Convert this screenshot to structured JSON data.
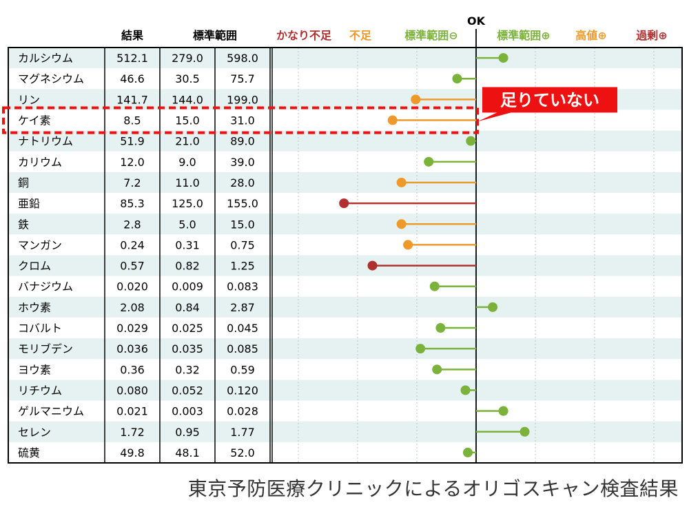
{
  "chart_data": {
    "type": "table",
    "ok_label": "OK",
    "columns": {
      "name": "",
      "result": "結果",
      "range": "標準範囲"
    },
    "scale_labels": [
      {
        "text": "かなり不足",
        "color": "#b03030"
      },
      {
        "text": "不足",
        "color": "#ee9a2a"
      },
      {
        "text": "標準範囲⊖",
        "color": "#7ab23a"
      },
      {
        "text": "標準範囲⊕",
        "color": "#7ab23a"
      },
      {
        "text": "高値⊕",
        "color": "#ee9a2a"
      },
      {
        "text": "過剰⊕",
        "color": "#b03030"
      }
    ],
    "colors": {
      "red": "#b03030",
      "orange": "#ee9a2a",
      "green": "#7ab23a",
      "highlight": "#ee1111",
      "stripe": "#e6f2f2"
    },
    "callout": "足りていない",
    "highlighted_row": "ケイ素",
    "rows": [
      {
        "name": "カルシウム",
        "result": "512.1",
        "low": "279.0",
        "high": "598.0",
        "level": 0.46,
        "color": "green"
      },
      {
        "name": "マグネシウム",
        "result": "46.6",
        "low": "30.5",
        "high": "75.7",
        "level": -0.32,
        "color": "green"
      },
      {
        "name": "リン",
        "result": "141.7",
        "low": "144.0",
        "high": "199.0",
        "level": -1.02,
        "color": "orange"
      },
      {
        "name": "ケイ素",
        "result": "8.5",
        "low": "15.0",
        "high": "31.0",
        "level": -1.41,
        "color": "orange"
      },
      {
        "name": "ナトリウム",
        "result": "51.9",
        "low": "21.0",
        "high": "89.0",
        "level": -0.09,
        "color": "green"
      },
      {
        "name": "カリウム",
        "result": "12.0",
        "low": "9.0",
        "high": "39.0",
        "level": -0.8,
        "color": "green"
      },
      {
        "name": "銅",
        "result": "7.2",
        "low": "11.0",
        "high": "28.0",
        "level": -1.26,
        "color": "orange"
      },
      {
        "name": "亜鉛",
        "result": "85.3",
        "low": "125.0",
        "high": "155.0",
        "level": -2.23,
        "color": "red"
      },
      {
        "name": "鉄",
        "result": "2.8",
        "low": "5.0",
        "high": "15.0",
        "level": -1.26,
        "color": "orange"
      },
      {
        "name": "マンガン",
        "result": "0.24",
        "low": "0.31",
        "high": "0.75",
        "level": -1.15,
        "color": "orange"
      },
      {
        "name": "クロム",
        "result": "0.57",
        "low": "0.82",
        "high": "1.25",
        "level": -1.75,
        "color": "red"
      },
      {
        "name": "バナジウム",
        "result": "0.020",
        "low": "0.009",
        "high": "0.083",
        "level": -0.7,
        "color": "green"
      },
      {
        "name": "ホウ素",
        "result": "2.08",
        "low": "0.84",
        "high": "2.87",
        "level": 0.28,
        "color": "green"
      },
      {
        "name": "コバルト",
        "result": "0.029",
        "low": "0.025",
        "high": "0.045",
        "level": -0.6,
        "color": "green"
      },
      {
        "name": "モリブデン",
        "result": "0.036",
        "low": "0.035",
        "high": "0.085",
        "level": -0.94,
        "color": "green"
      },
      {
        "name": "ヨウ素",
        "result": "0.36",
        "low": "0.32",
        "high": "0.59",
        "level": -0.66,
        "color": "green"
      },
      {
        "name": "リチウム",
        "result": "0.080",
        "low": "0.052",
        "high": "0.120",
        "level": -0.18,
        "color": "green"
      },
      {
        "name": "ゲルマニウム",
        "result": "0.021",
        "low": "0.003",
        "high": "0.028",
        "level": 0.46,
        "color": "green"
      },
      {
        "name": "セレン",
        "result": "1.72",
        "low": "0.95",
        "high": "1.77",
        "level": 0.82,
        "color": "green"
      },
      {
        "name": "硫黄",
        "result": "49.8",
        "low": "48.1",
        "high": "52.0",
        "level": -0.14,
        "color": "green"
      }
    ]
  },
  "caption": "東京予防医療クリニックによるオリゴスキャン検査結果"
}
